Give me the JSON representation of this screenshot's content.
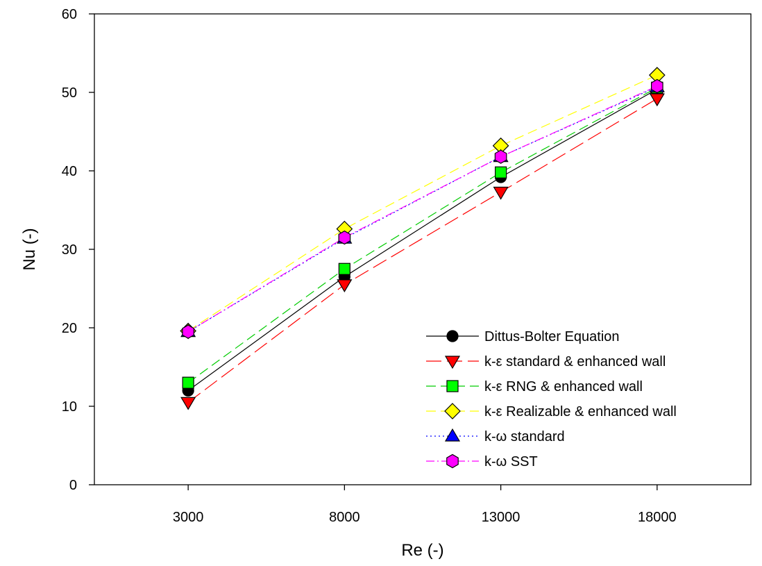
{
  "chart_data": {
    "type": "line",
    "title": "",
    "xlabel": "Re (-)",
    "ylabel": "Nu (-)",
    "x": [
      3000,
      8000,
      13000,
      18000
    ],
    "xtick_labels": [
      "3000",
      "8000",
      "13000",
      "18000"
    ],
    "xlim": [
      0,
      21000
    ],
    "ylim": [
      0,
      60
    ],
    "yticks": [
      0,
      10,
      20,
      30,
      40,
      50,
      60
    ],
    "ytick_labels": [
      "0",
      "10",
      "20",
      "30",
      "40",
      "50",
      "60"
    ],
    "grid": false,
    "legend_position": "bottom-right",
    "series": [
      {
        "name": "Dittus-Bolter Equation",
        "values": [
          12.0,
          26.5,
          39.2,
          50.4
        ],
        "color": "#000000",
        "marker": "circle",
        "marker_fill": "#000000",
        "line_style": "solid"
      },
      {
        "name": "k-ε standard & enhanced wall",
        "values": [
          10.5,
          25.5,
          37.3,
          49.2
        ],
        "color": "#ff0000",
        "marker": "triangle-down",
        "marker_fill": "#ff0000",
        "line_style": "long-dash"
      },
      {
        "name": "k-ε RNG & enhanced wall",
        "values": [
          13.0,
          27.5,
          39.8,
          50.6
        ],
        "color": "#00cc00",
        "marker": "square",
        "marker_fill": "#00ff00",
        "line_style": "dash"
      },
      {
        "name": "k-ε Realizable & enhanced wall",
        "values": [
          19.6,
          32.6,
          43.2,
          52.2
        ],
        "color": "#ffff00",
        "marker": "diamond",
        "marker_fill": "#ffff00",
        "line_style": "dash"
      },
      {
        "name": "k-ω standard",
        "values": [
          19.5,
          31.4,
          41.8,
          50.7
        ],
        "color": "#0000ff",
        "marker": "triangle-up",
        "marker_fill": "#0000ff",
        "line_style": "dot"
      },
      {
        "name": "k-ω SST",
        "values": [
          19.5,
          31.5,
          41.8,
          50.8
        ],
        "color": "#ff00ff",
        "marker": "hexagon",
        "marker_fill": "#ff00ff",
        "line_style": "dash-dot"
      }
    ]
  }
}
